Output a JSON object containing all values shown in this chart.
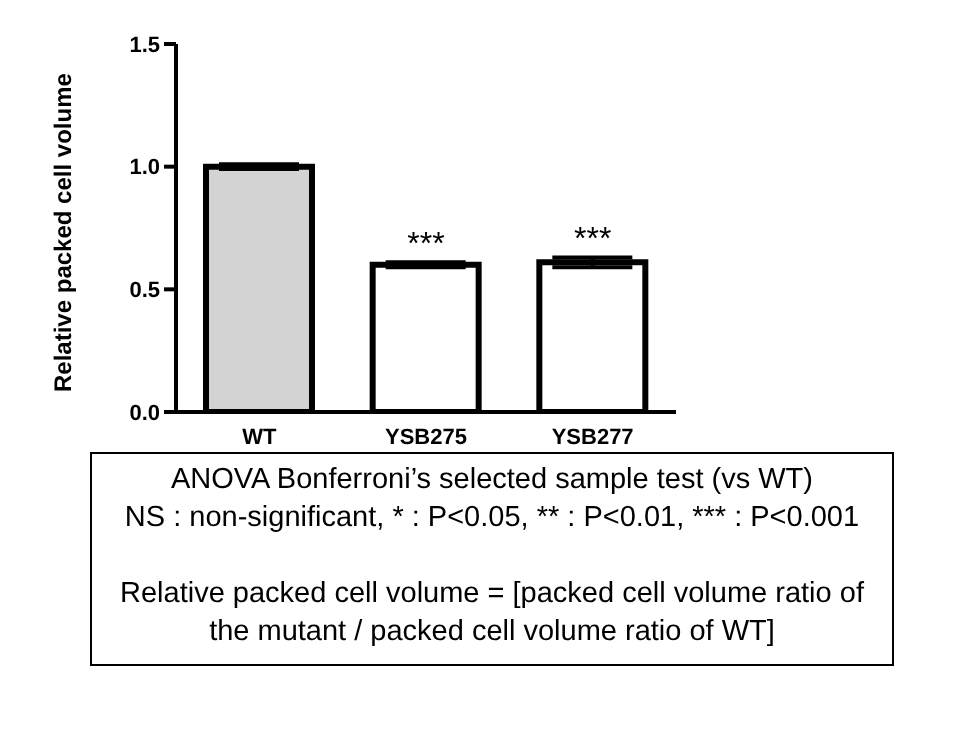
{
  "chart_data": {
    "type": "bar",
    "ylabel": "Relative packed cell volume",
    "categories": [
      "WT",
      "YSB275",
      "YSB277"
    ],
    "values": [
      1.0,
      0.6,
      0.61
    ],
    "errors": [
      0.01,
      0.01,
      0.02
    ],
    "colors": [
      "#d3d3d3",
      "#ffffff",
      "#ffffff"
    ],
    "ylim": [
      0,
      1.5
    ],
    "yticks": [
      {
        "value": 0,
        "label": "0.0"
      },
      {
        "value": 0.5,
        "label": "0.5"
      },
      {
        "value": 1,
        "label": "1.0"
      },
      {
        "value": 1.5,
        "label": "1.5"
      }
    ],
    "grid": false,
    "legend": false,
    "annotations": [
      {
        "text": "***",
        "x": "YSB275",
        "y": 0.61
      },
      {
        "text": "***",
        "x": "YSB277",
        "y": 0.63
      },
      "ANOVA Bonferroni’s selected sample test (vs WT)",
      "NS : non-significant, * : P<0.05, ** : P<0.01, *** : P<0.001",
      "Relative packed cell volume = [packed cell volume ratio of the mutant / packed cell volume ratio of WT]"
    ]
  }
}
